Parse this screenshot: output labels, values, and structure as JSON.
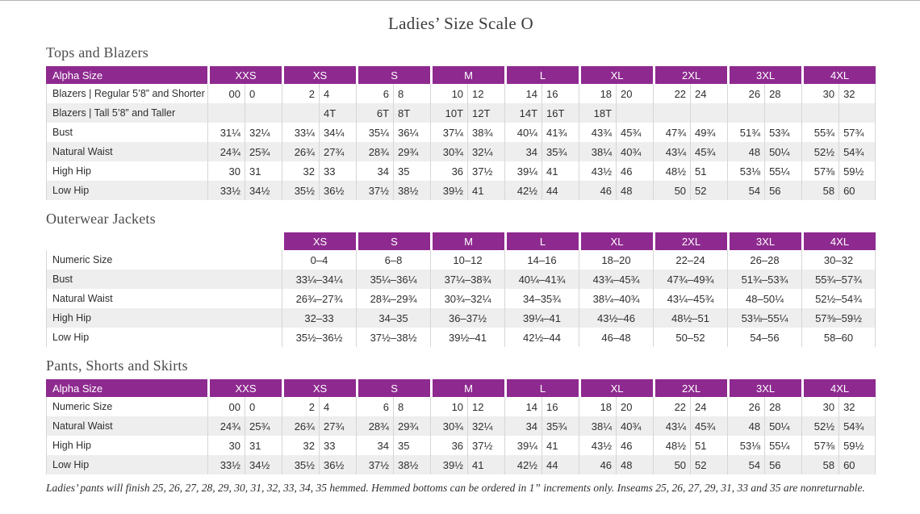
{
  "page_title": "Ladies’ Size Scale O",
  "colors": {
    "header_bg": "#8e2a8f",
    "row_alt": "#eeeeee"
  },
  "sections": [
    {
      "title": "Tops and Blazers",
      "header_label": "Alpha Size",
      "sizes": [
        "XXS",
        "XS",
        "S",
        "M",
        "L",
        "XL",
        "2XL",
        "3XL",
        "4XL"
      ],
      "rows": [
        {
          "label": "Blazers | Regular 5’8” and Shorter",
          "values": [
            "00",
            "0",
            "2",
            "4",
            "6",
            "8",
            "10",
            "12",
            "14",
            "16",
            "18",
            "20",
            "22",
            "24",
            "26",
            "28",
            "30",
            "32"
          ]
        },
        {
          "label": "Blazers | Tall 5’8” and Taller",
          "values": [
            "",
            "",
            "",
            "4T",
            "6T",
            "8T",
            "10T",
            "12T",
            "14T",
            "16T",
            "18T",
            "",
            "",
            "",
            "",
            "",
            "",
            ""
          ]
        },
        {
          "label": "Bust",
          "values": [
            "31¼",
            "32¼",
            "33¼",
            "34¼",
            "35¼",
            "36¼",
            "37¼",
            "38¾",
            "40¼",
            "41¾",
            "43¾",
            "45¾",
            "47¾",
            "49¾",
            "51¾",
            "53¾",
            "55¾",
            "57¾"
          ]
        },
        {
          "label": "Natural Waist",
          "values": [
            "24¾",
            "25¾",
            "26¾",
            "27¾",
            "28¾",
            "29¾",
            "30¾",
            "32¼",
            "34",
            "35¾",
            "38¼",
            "40¾",
            "43¼",
            "45¾",
            "48",
            "50¼",
            "52½",
            "54¾"
          ]
        },
        {
          "label": "High Hip",
          "values": [
            "30",
            "31",
            "32",
            "33",
            "34",
            "35",
            "36",
            "37½",
            "39¼",
            "41",
            "43½",
            "46",
            "48½",
            "51",
            "53⅛",
            "55¼",
            "57⅜",
            "59½"
          ]
        },
        {
          "label": "Low Hip",
          "values": [
            "33½",
            "34½",
            "35½",
            "36½",
            "37½",
            "38½",
            "39½",
            "41",
            "42½",
            "44",
            "46",
            "48",
            "50",
            "52",
            "54",
            "56",
            "58",
            "60"
          ]
        }
      ]
    },
    {
      "title": "Outerwear Jackets",
      "header_label": "",
      "sizes": [
        "XS",
        "S",
        "M",
        "L",
        "XL",
        "2XL",
        "3XL",
        "4XL"
      ],
      "rows": [
        {
          "label": "Numeric Size",
          "values": [
            "0–4",
            "6–8",
            "10–12",
            "14–16",
            "18–20",
            "22–24",
            "26–28",
            "30–32"
          ]
        },
        {
          "label": "Bust",
          "values": [
            "33¼–34¼",
            "35¼–36¼",
            "37¼–38¾",
            "40¼–41¾",
            "43¾–45¾",
            "47¾–49¾",
            "51¾–53¾",
            "55¾–57¾"
          ]
        },
        {
          "label": "Natural Waist",
          "values": [
            "26¾–27¾",
            "28¾–29¾",
            "30¾–32¼",
            "34–35¾",
            "38¼–40¾",
            "43¼–45¾",
            "48–50¼",
            "52½–54¾"
          ]
        },
        {
          "label": "High Hip",
          "values": [
            "32–33",
            "34–35",
            "36–37½",
            "39¼–41",
            "43½–46",
            "48½–51",
            "53⅛–55¼",
            "57⅜–59½"
          ]
        },
        {
          "label": "Low Hip",
          "values": [
            "35½–36½",
            "37½–38½",
            "39½–41",
            "42½–44",
            "46–48",
            "50–52",
            "54–56",
            "58–60"
          ]
        }
      ]
    },
    {
      "title": "Pants, Shorts and Skirts",
      "header_label": "Alpha Size",
      "sizes": [
        "XXS",
        "XS",
        "S",
        "M",
        "L",
        "XL",
        "2XL",
        "3XL",
        "4XL"
      ],
      "rows": [
        {
          "label": "Numeric Size",
          "values": [
            "00",
            "0",
            "2",
            "4",
            "6",
            "8",
            "10",
            "12",
            "14",
            "16",
            "18",
            "20",
            "22",
            "24",
            "26",
            "28",
            "30",
            "32"
          ]
        },
        {
          "label": "Natural Waist",
          "values": [
            "24¾",
            "25¾",
            "26¾",
            "27¾",
            "28¾",
            "29¾",
            "30¾",
            "32¼",
            "34",
            "35¾",
            "38¼",
            "40¾",
            "43¼",
            "45¾",
            "48",
            "50¼",
            "52½",
            "54¾"
          ]
        },
        {
          "label": "High Hip",
          "values": [
            "30",
            "31",
            "32",
            "33",
            "34",
            "35",
            "36",
            "37½",
            "39¼",
            "41",
            "43½",
            "46",
            "48½",
            "51",
            "53⅛",
            "55¼",
            "57⅜",
            "59½"
          ]
        },
        {
          "label": "Low Hip",
          "values": [
            "33½",
            "34½",
            "35½",
            "36½",
            "37½",
            "38½",
            "39½",
            "41",
            "42½",
            "44",
            "46",
            "48",
            "50",
            "52",
            "54",
            "56",
            "58",
            "60"
          ]
        }
      ]
    }
  ],
  "footnote": "Ladies’ pants will finish 25, 26, 27, 28, 29, 30, 31, 32, 33, 34, 35 hemmed. Hemmed bottoms can be ordered in 1” increments only. Inseams 25, 26, 27, 29, 31, 33 and 35 are nonreturnable."
}
